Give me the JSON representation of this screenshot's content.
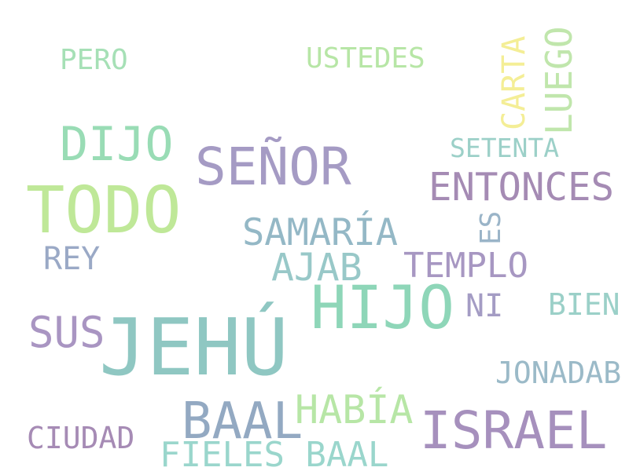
{
  "words": {
    "jehu": {
      "text": "JEHÚ",
      "color": "#8fc7c2"
    },
    "todo": {
      "text": "TODO",
      "color": "#bfe898"
    },
    "hijo": {
      "text": "HIJO",
      "color": "#8ed6b8"
    },
    "senor": {
      "text": "SEÑOR",
      "color": "#a59bc4"
    },
    "israel": {
      "text": "ISRAEL",
      "color": "#a690bd"
    },
    "baal_big": {
      "text": "BAAL",
      "color": "#93a9c2"
    },
    "dijo": {
      "text": "DIJO",
      "color": "#99dcb5"
    },
    "entonces": {
      "text": "ENTONCES",
      "color": "#a58bb4"
    },
    "samaria": {
      "text": "SAMARÍA",
      "color": "#94b8c6"
    },
    "ajab": {
      "text": "AJAB",
      "color": "#98c8c8"
    },
    "templo": {
      "text": "TEMPLO",
      "color": "#a797c2"
    },
    "habia": {
      "text": "HABÍA",
      "color": "#b7e6a6"
    },
    "sus": {
      "text": "SUS",
      "color": "#a995c2"
    },
    "fieles_baal": {
      "text": "FIELES BAAL",
      "color": "#9ad6cc"
    },
    "ciudad": {
      "text": "CIUDAD",
      "color": "#a68bb5"
    },
    "jonadab": {
      "text": "JONADAB",
      "color": "#9bbac8"
    },
    "rey": {
      "text": "REY",
      "color": "#9aa9c6"
    },
    "bien": {
      "text": "BIEN",
      "color": "#9bd0c8"
    },
    "ni": {
      "text": "NI",
      "color": "#a49cc4"
    },
    "setenta": {
      "text": "SETENTA",
      "color": "#9cd0c8"
    },
    "pero": {
      "text": "PERO",
      "color": "#a6e0b6"
    },
    "ustedes": {
      "text": "USTEDES",
      "color": "#b7e6a6"
    },
    "carta": {
      "text": "CARTA",
      "color": "#f4ee96"
    },
    "luego": {
      "text": "LUEGO",
      "color": "#c0e6ac"
    },
    "es": {
      "text": "ES",
      "color": "#9ab4c8"
    }
  }
}
